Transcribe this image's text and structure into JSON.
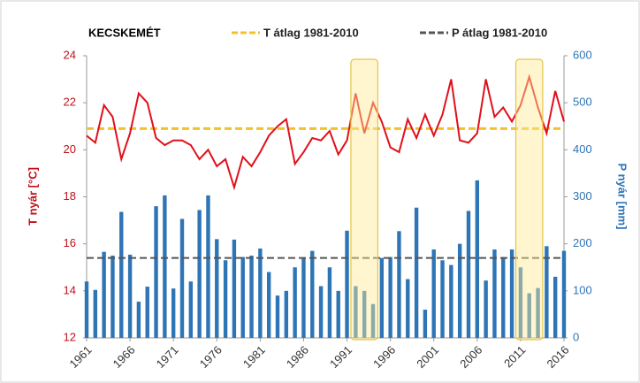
{
  "chart_data": {
    "type": "combo",
    "title": "KECSKEMÉT",
    "ylabel": "T nyár [°C]",
    "y2label": "P nyár [mm]",
    "x": [
      1961,
      1962,
      1963,
      1964,
      1965,
      1966,
      1967,
      1968,
      1969,
      1970,
      1971,
      1972,
      1973,
      1974,
      1975,
      1976,
      1977,
      1978,
      1979,
      1980,
      1981,
      1982,
      1983,
      1984,
      1985,
      1986,
      1987,
      1988,
      1989,
      1990,
      1991,
      1992,
      1993,
      1994,
      1995,
      1996,
      1997,
      1998,
      1999,
      2000,
      2001,
      2002,
      2003,
      2004,
      2005,
      2006,
      2007,
      2008,
      2009,
      2010,
      2011,
      2012,
      2013,
      2014,
      2015,
      2016
    ],
    "xlim": [
      1961,
      2016
    ],
    "xticks": [
      1961,
      1966,
      1971,
      1976,
      1981,
      1986,
      1991,
      1996,
      2001,
      2006,
      2011,
      2016
    ],
    "ylim": [
      12,
      24
    ],
    "yticks": [
      12,
      14,
      16,
      18,
      20,
      22,
      24
    ],
    "y2lim": [
      0,
      600
    ],
    "y2ticks": [
      0,
      100,
      200,
      300,
      400,
      500,
      600
    ],
    "series": [
      {
        "kind": "bar",
        "axis": "y2",
        "color": "#2e75b6",
        "values": [
          120,
          102,
          183,
          175,
          268,
          177,
          77,
          109,
          280,
          303,
          105,
          253,
          120,
          272,
          303,
          210,
          165,
          209,
          172,
          175,
          190,
          140,
          90,
          100,
          150,
          170,
          185,
          110,
          150,
          100,
          228,
          110,
          100,
          72,
          170,
          172,
          227,
          125,
          277,
          60,
          188,
          165,
          155,
          200,
          270,
          335,
          122,
          188,
          172,
          188,
          150,
          95,
          106,
          195,
          130,
          185
        ]
      },
      {
        "kind": "line",
        "axis": "y",
        "color": "#e0101a",
        "values": [
          20.6,
          20.3,
          21.9,
          21.4,
          19.6,
          20.7,
          22.4,
          22.0,
          20.5,
          20.2,
          20.4,
          20.4,
          20.2,
          19.6,
          20.0,
          19.3,
          19.6,
          18.4,
          19.7,
          19.3,
          19.9,
          20.6,
          21.0,
          21.3,
          19.4,
          19.9,
          20.5,
          20.4,
          20.8,
          19.8,
          20.4,
          22.4,
          20.7,
          22.0,
          21.2,
          20.1,
          19.9,
          21.3,
          20.5,
          21.5,
          20.6,
          21.5,
          23.0,
          20.4,
          20.3,
          20.7,
          23.0,
          21.4,
          21.8,
          21.2,
          21.9,
          23.1,
          21.8,
          20.7,
          22.5,
          21.2
        ]
      }
    ],
    "reference_lines": [
      {
        "name": "T átlag 1981-2010",
        "value": 20.9,
        "color": "#f2c12e",
        "axis": "y"
      },
      {
        "name": "P átlag 1981-2010",
        "value": 170,
        "color": "#555555",
        "axis": "y2"
      }
    ],
    "highlights": [
      {
        "from": 1992,
        "to": 1994
      },
      {
        "from": 2011,
        "to": 2013
      }
    ]
  }
}
